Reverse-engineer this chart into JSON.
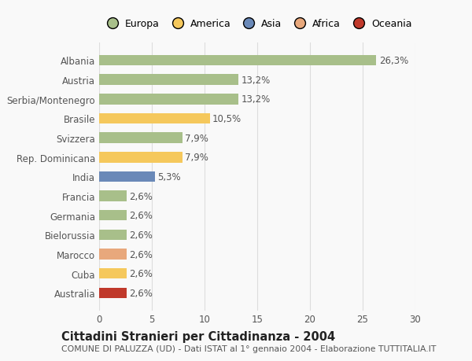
{
  "countries": [
    "Albania",
    "Austria",
    "Serbia/Montenegro",
    "Brasile",
    "Svizzera",
    "Rep. Dominicana",
    "India",
    "Francia",
    "Germania",
    "Bielorussia",
    "Marocco",
    "Cuba",
    "Australia"
  ],
  "values": [
    26.3,
    13.2,
    13.2,
    10.5,
    7.9,
    7.9,
    5.3,
    2.6,
    2.6,
    2.6,
    2.6,
    2.6,
    2.6
  ],
  "labels": [
    "26,3%",
    "13,2%",
    "13,2%",
    "10,5%",
    "7,9%",
    "7,9%",
    "5,3%",
    "2,6%",
    "2,6%",
    "2,6%",
    "2,6%",
    "2,6%",
    "2,6%"
  ],
  "colors": [
    "#a8bf8a",
    "#a8bf8a",
    "#a8bf8a",
    "#f5c85c",
    "#a8bf8a",
    "#f5c85c",
    "#6a89b8",
    "#a8bf8a",
    "#a8bf8a",
    "#a8bf8a",
    "#e8a87c",
    "#f5c85c",
    "#c0392b"
  ],
  "continent_labels": [
    "Europa",
    "America",
    "Asia",
    "Africa",
    "Oceania"
  ],
  "continent_colors": [
    "#a8bf8a",
    "#f5c85c",
    "#6a89b8",
    "#e8a87c",
    "#c0392b"
  ],
  "xlim": [
    0,
    30
  ],
  "xticks": [
    0,
    5,
    10,
    15,
    20,
    25,
    30
  ],
  "title": "Cittadini Stranieri per Cittadinanza - 2004",
  "subtitle": "COMUNE DI PALUZZA (UD) - Dati ISTAT al 1° gennaio 2004 - Elaborazione TUTTITALIA.IT",
  "bg_color": "#f9f9f9",
  "bar_height": 0.55,
  "label_fontsize": 8.5,
  "ytick_fontsize": 8.5,
  "xtick_fontsize": 8.5,
  "title_fontsize": 10.5,
  "subtitle_fontsize": 7.8,
  "label_color": "#555555",
  "grid_color": "#dddddd"
}
